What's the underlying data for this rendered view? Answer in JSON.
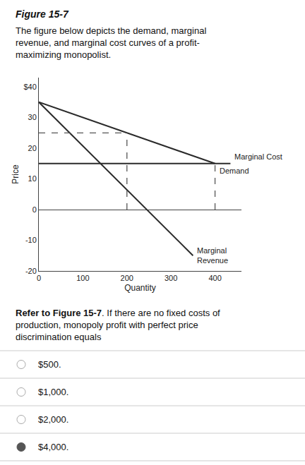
{
  "chart_data": {
    "type": "line",
    "title": "Figure 15-7",
    "subtitle": "The figure below depicts the demand, marginal\nrevenue, and marginal cost curves of a profit-\nmaximizing monopolist.",
    "xlabel": "Quantity",
    "ylabel": "Price",
    "xlim": [
      0,
      460
    ],
    "xticks": [
      0,
      100,
      200,
      300,
      400
    ],
    "ylim": [
      -20,
      43
    ],
    "yticks": [
      -20,
      -10,
      0,
      10,
      20,
      30,
      {
        "value": 40,
        "label": "$40"
      }
    ],
    "grid": false,
    "series": [
      {
        "name": "Demand",
        "x": [
          0,
          400
        ],
        "values": [
          35,
          15
        ],
        "color": "#2a2a2a",
        "line_style": "solid"
      },
      {
        "name": "Marginal\nRevenue",
        "x": [
          0,
          350
        ],
        "values": [
          35,
          -15
        ],
        "color": "#2a2a2a",
        "line_style": "solid"
      },
      {
        "name": "Marginal Cost",
        "x": [
          0,
          435
        ],
        "values": [
          15,
          15
        ],
        "color": "#2a2a2a",
        "line_style": "solid"
      },
      {
        "x": [
          200,
          200
        ],
        "values": [
          0,
          25
        ],
        "color": "#555555",
        "line_style": "dashed"
      },
      {
        "x": [
          0,
          200
        ],
        "values": [
          25,
          25
        ],
        "color": "#555555",
        "line_style": "dashed"
      },
      {
        "x": [
          400,
          400
        ],
        "values": [
          0,
          15
        ],
        "color": "#555555",
        "line_style": "dashed"
      }
    ],
    "question": [
      {
        "text": "Refer to Figure 15-7",
        "bold": true
      },
      {
        "text": ". If there are no fixed costs of\nproduction, monopoly profit with perfect price\ndiscrimination equals"
      }
    ],
    "choices": [
      {
        "text": "$500."
      },
      {
        "text": "$1,000."
      },
      {
        "text": "$2,000."
      },
      {
        "text": "$4,000.",
        "selected": true
      }
    ]
  }
}
